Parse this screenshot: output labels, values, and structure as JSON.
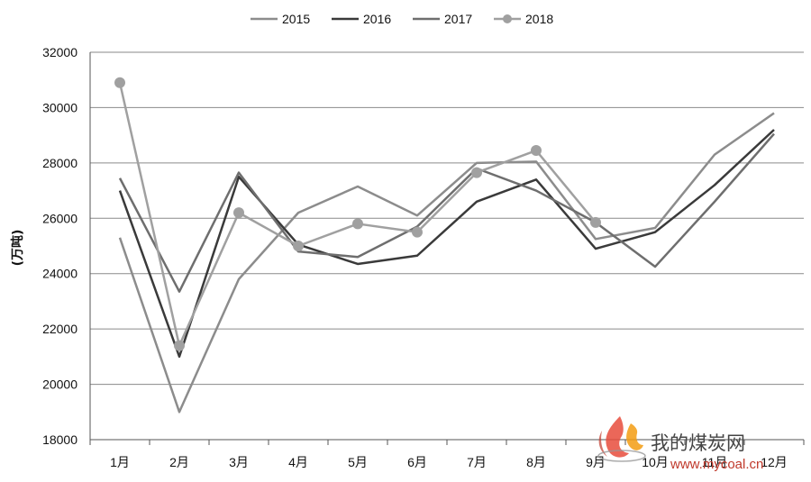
{
  "chart_data": {
    "type": "line",
    "title": "",
    "xlabel": "",
    "ylabel": "(万吨)",
    "ylim": [
      18000,
      32000
    ],
    "yticks": [
      18000,
      20000,
      22000,
      24000,
      26000,
      28000,
      30000,
      32000
    ],
    "grid": "horizontal",
    "legend_position": "top-center",
    "categories": [
      "1月",
      "2月",
      "3月",
      "4月",
      "5月",
      "6月",
      "7月",
      "8月",
      "9月",
      "10月",
      "11月",
      "12月"
    ],
    "series": [
      {
        "name": "2015",
        "color": "#8c8c8c",
        "marker": "none",
        "values": [
          25300,
          19000,
          23800,
          26200,
          27150,
          26100,
          28000,
          28050,
          25250,
          25650,
          28300,
          29800
        ]
      },
      {
        "name": "2016",
        "color": "#3a3a3a",
        "marker": "none",
        "values": [
          27000,
          21000,
          27500,
          25050,
          24350,
          24650,
          26600,
          27400,
          24900,
          25500,
          27200,
          29200
        ]
      },
      {
        "name": "2017",
        "color": "#6e6e6e",
        "marker": "none",
        "values": [
          27450,
          23350,
          27650,
          24800,
          24600,
          25700,
          27800,
          27000,
          25850,
          24250,
          26600,
          29050
        ]
      },
      {
        "name": "2018",
        "color": "#a0a0a0",
        "marker": "circle",
        "values": [
          30900,
          21400,
          26200,
          25000,
          25800,
          25500,
          27650,
          28450,
          25850,
          null,
          null,
          null
        ]
      }
    ]
  },
  "watermark": {
    "text": "我的煤炭网",
    "url": "www.mycoal.cn"
  }
}
